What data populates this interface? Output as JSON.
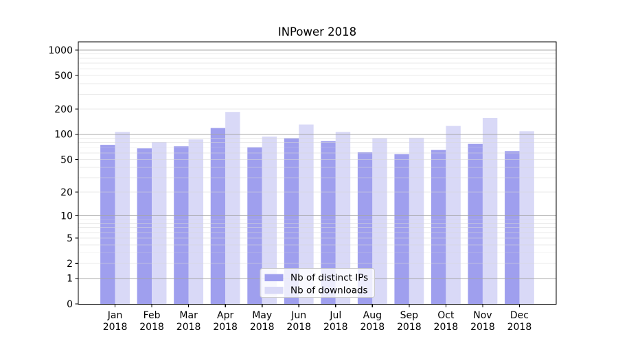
{
  "title": "INPower 2018",
  "chart_data": {
    "type": "bar",
    "title": "INPower 2018",
    "year_label": "2018",
    "months": [
      "Jan",
      "Feb",
      "Mar",
      "Apr",
      "May",
      "Jun",
      "Jul",
      "Aug",
      "Sep",
      "Oct",
      "Nov",
      "Dec"
    ],
    "categories": [
      "Jan 2018",
      "Feb 2018",
      "Mar 2018",
      "Apr 2018",
      "May 2018",
      "Jun 2018",
      "Jul 2018",
      "Aug 2018",
      "Sep 2018",
      "Oct 2018",
      "Nov 2018",
      "Dec 2018"
    ],
    "series": [
      {
        "name": "Nb of distinct IPs",
        "color": "#9f9fee",
        "values": [
          75,
          68,
          72,
          119,
          70,
          90,
          83,
          61,
          58,
          65,
          77,
          63
        ]
      },
      {
        "name": "Nb of downloads",
        "color": "#d9d9f7",
        "values": [
          107,
          81,
          87,
          185,
          94,
          131,
          107,
          90,
          91,
          126,
          157,
          109
        ]
      }
    ],
    "xlabel": "",
    "ylabel": "",
    "y_scale": "log1p",
    "ylim": [
      0,
      1230
    ],
    "y_ticks": [
      0,
      1,
      2,
      5,
      10,
      20,
      50,
      100,
      200,
      500,
      1000
    ],
    "y_major_gridlines": [
      1,
      10,
      100,
      1000
    ],
    "y_minor_gridlines": [
      2,
      3,
      4,
      5,
      6,
      7,
      8,
      9,
      20,
      30,
      40,
      50,
      60,
      70,
      80,
      90,
      200,
      300,
      400,
      500,
      600,
      700,
      800,
      900
    ],
    "grid": true,
    "legend_position": "lower center",
    "colors": {
      "background": "#ffffff",
      "spine": "#000000",
      "major_grid": "#a6a6a6",
      "minor_grid": "#d8d8d8",
      "legend_border": "#cccccc",
      "legend_background": "rgba(255,255,255,0.8)"
    }
  }
}
